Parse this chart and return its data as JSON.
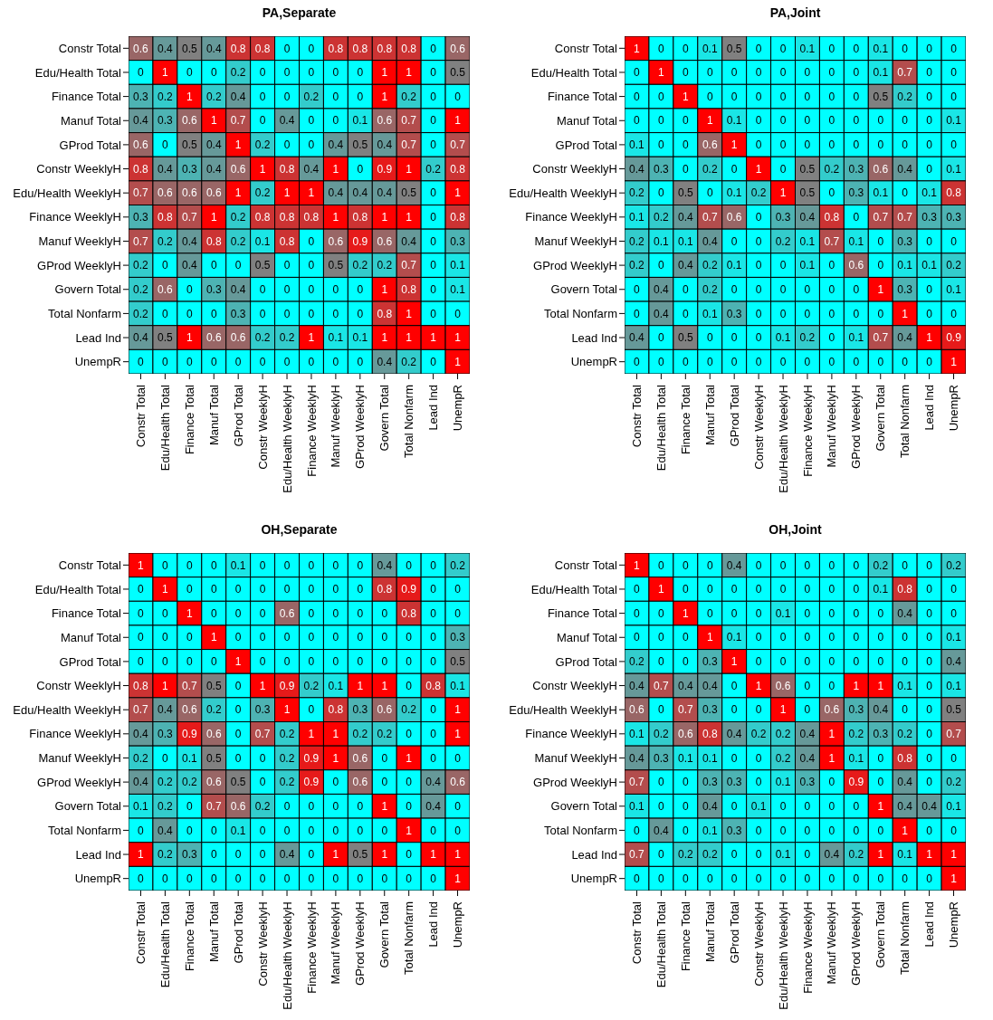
{
  "chart_data": [
    {
      "type": "heatmap",
      "title": "PA,Separate",
      "data_labels": true,
      "colors": [
        "#00ffff",
        "#808080",
        "#ff0000"
      ],
      "categories": [
        "Constr Total",
        "Edu/Health Total",
        "Finance Total",
        "Manuf Total",
        "GProd Total",
        "Constr WeeklyH",
        "Edu/Health WeeklyH",
        "Finance WeeklyH",
        "Manuf WeeklyH",
        "GProd WeeklyH",
        "Govern Total",
        "Total Nonfarm",
        "Lead Ind",
        "UnempR"
      ],
      "y_categories": [
        "Constr Total",
        "Edu/Health Total",
        "Finance Total",
        "Manuf Total",
        "GProd Total",
        "Constr WeeklyH",
        "Edu/Health WeeklyH",
        "Finance WeeklyH",
        "Manuf WeeklyH",
        "GProd WeeklyH",
        "Govern Total",
        "Total Nonfarm",
        "Lead Ind",
        "UnempR"
      ],
      "cells": [
        [
          0.6,
          0.4,
          0.5,
          0.4,
          0.8,
          0.8,
          0,
          0,
          0.8,
          0.8,
          0.8,
          0.8,
          0,
          0.6
        ],
        [
          0,
          1,
          0,
          0,
          0.2,
          0,
          0,
          0,
          0,
          0,
          1,
          1,
          0,
          0.5
        ],
        [
          0.3,
          0.2,
          1,
          0.2,
          0.4,
          0,
          0,
          0.2,
          0,
          0,
          1,
          0.2,
          0,
          0
        ],
        [
          0.4,
          0.3,
          0.6,
          1,
          0.7,
          0,
          0.4,
          0,
          0,
          0.1,
          0.6,
          0.7,
          0,
          1
        ],
        [
          0.6,
          0,
          0.5,
          0.4,
          1,
          0.2,
          0,
          0,
          0.4,
          0.5,
          0.4,
          0.7,
          0,
          0.7
        ],
        [
          0.8,
          0.4,
          0.3,
          0.4,
          0.6,
          1,
          0.8,
          0.4,
          1,
          0,
          0.9,
          1,
          0.2,
          0.8
        ],
        [
          0.7,
          0.6,
          0.6,
          0.6,
          1,
          0.2,
          1,
          1,
          0.4,
          0.4,
          0.4,
          0.5,
          0,
          1
        ],
        [
          0.3,
          0.8,
          0.7,
          1,
          0.2,
          0.8,
          0.8,
          0.8,
          1,
          0.8,
          1,
          1,
          0,
          0.8
        ],
        [
          0.7,
          0.2,
          0.4,
          0.8,
          0.2,
          0.1,
          0.8,
          0,
          0.6,
          0.9,
          0.6,
          0.4,
          0,
          0.3
        ],
        [
          0.2,
          0,
          0.4,
          0,
          0,
          0.5,
          0,
          0,
          0.5,
          0.2,
          0.2,
          0.7,
          0,
          0.1
        ],
        [
          0.2,
          0.6,
          0,
          0.3,
          0.4,
          0,
          0,
          0,
          0,
          0,
          1,
          0.8,
          0,
          0.1
        ],
        [
          0.2,
          0,
          0,
          0,
          0.3,
          0,
          0,
          0,
          0,
          0,
          0.8,
          1,
          0,
          0
        ],
        [
          0.4,
          0.5,
          1,
          0.6,
          0.6,
          0.2,
          0.2,
          1,
          0.1,
          0.1,
          1,
          1,
          1,
          1
        ],
        [
          0,
          0,
          0,
          0,
          0,
          0,
          0,
          0,
          0,
          0,
          0.4,
          0.2,
          0,
          1
        ]
      ]
    },
    {
      "type": "heatmap",
      "title": "PA,Joint",
      "data_labels": true,
      "colors": [
        "#00ffff",
        "#808080",
        "#ff0000"
      ],
      "categories": [
        "Constr Total",
        "Edu/Health Total",
        "Finance Total",
        "Manuf Total",
        "GProd Total",
        "Constr WeeklyH",
        "Edu/Health WeeklyH",
        "Finance WeeklyH",
        "Manuf WeeklyH",
        "GProd WeeklyH",
        "Govern Total",
        "Total Nonfarm",
        "Lead Ind",
        "UnempR"
      ],
      "y_categories": [
        "Constr Total",
        "Edu/Health Total",
        "Finance Total",
        "Manuf Total",
        "GProd Total",
        "Constr WeeklyH",
        "Edu/Health WeeklyH",
        "Finance WeeklyH",
        "Manuf WeeklyH",
        "GProd WeeklyH",
        "Govern Total",
        "Total Nonfarm",
        "Lead Ind",
        "UnempR"
      ],
      "cells": [
        [
          1,
          0,
          0,
          0.1,
          0.5,
          0,
          0,
          0.1,
          0,
          0,
          0.1,
          0,
          0,
          0
        ],
        [
          0,
          1,
          0,
          0,
          0,
          0,
          0,
          0,
          0,
          0,
          0.1,
          0.7,
          0,
          0
        ],
        [
          0,
          0,
          1,
          0,
          0,
          0,
          0,
          0,
          0,
          0,
          0.5,
          0.2,
          0,
          0
        ],
        [
          0,
          0,
          0,
          1,
          0.1,
          0,
          0,
          0,
          0,
          0,
          0,
          0,
          0,
          0.1
        ],
        [
          0.1,
          0,
          0,
          0.6,
          1,
          0,
          0,
          0,
          0,
          0,
          0,
          0,
          0,
          0
        ],
        [
          0.4,
          0.3,
          0,
          0.2,
          0,
          1,
          0,
          0.5,
          0.2,
          0.3,
          0.6,
          0.4,
          0,
          0.1
        ],
        [
          0.2,
          0,
          0.5,
          0,
          0.1,
          0.2,
          1,
          0.5,
          0,
          0.3,
          0.1,
          0,
          0.1,
          0.8
        ],
        [
          0.1,
          0.2,
          0.4,
          0.7,
          0.6,
          0,
          0.3,
          0.4,
          0.8,
          0,
          0.7,
          0.7,
          0.3,
          0.3
        ],
        [
          0.2,
          0.1,
          0.1,
          0.4,
          0,
          0,
          0.2,
          0.1,
          0.7,
          0.1,
          0,
          0.3,
          0,
          0
        ],
        [
          0.2,
          0,
          0.4,
          0.2,
          0.1,
          0,
          0,
          0.1,
          0,
          0.6,
          0,
          0.1,
          0.1,
          0.2
        ],
        [
          0,
          0.4,
          0,
          0.2,
          0,
          0,
          0,
          0,
          0,
          0,
          1,
          0.3,
          0,
          0.1
        ],
        [
          0,
          0.4,
          0,
          0.1,
          0.3,
          0,
          0,
          0,
          0,
          0,
          0,
          1,
          0,
          0
        ],
        [
          0.4,
          0,
          0.5,
          0,
          0,
          0,
          0.1,
          0.2,
          0,
          0.1,
          0.7,
          0.4,
          1,
          0.9
        ],
        [
          0,
          0,
          0,
          0,
          0,
          0,
          0,
          0,
          0,
          0,
          0,
          0,
          0,
          1
        ]
      ]
    },
    {
      "type": "heatmap",
      "title": "OH,Separate",
      "data_labels": true,
      "colors": [
        "#00ffff",
        "#808080",
        "#ff0000"
      ],
      "categories": [
        "Constr Total",
        "Edu/Health Total",
        "Finance Total",
        "Manuf Total",
        "GProd Total",
        "Constr WeeklyH",
        "Edu/Health WeeklyH",
        "Finance WeeklyH",
        "Manuf WeeklyH",
        "GProd WeeklyH",
        "Govern Total",
        "Total Nonfarm",
        "Lead Ind",
        "UnempR"
      ],
      "y_categories": [
        "Constr Total",
        "Edu/Health Total",
        "Finance Total",
        "Manuf Total",
        "GProd Total",
        "Constr WeeklyH",
        "Edu/Health WeeklyH",
        "Finance WeeklyH",
        "Manuf WeeklyH",
        "GProd WeeklyH",
        "Govern Total",
        "Total Nonfarm",
        "Lead Ind",
        "UnempR"
      ],
      "cells": [
        [
          1,
          0,
          0,
          0,
          0.1,
          0,
          0,
          0,
          0,
          0,
          0.4,
          0,
          0,
          0.2
        ],
        [
          0,
          1,
          0,
          0,
          0,
          0,
          0,
          0,
          0,
          0,
          0.8,
          0.9,
          0,
          0
        ],
        [
          0,
          0,
          1,
          0,
          0,
          0,
          0.6,
          0,
          0,
          0,
          0,
          0.8,
          0,
          0
        ],
        [
          0,
          0,
          0,
          1,
          0,
          0,
          0,
          0,
          0,
          0,
          0,
          0,
          0,
          0.3
        ],
        [
          0,
          0,
          0,
          0,
          1,
          0,
          0,
          0,
          0,
          0,
          0,
          0,
          0,
          0.5
        ],
        [
          0.8,
          1,
          0.7,
          0.5,
          0,
          1,
          0.9,
          0.2,
          0.1,
          1,
          1,
          0,
          0.8,
          0.1
        ],
        [
          0.7,
          0.4,
          0.6,
          0.2,
          0,
          0.3,
          1,
          0,
          0.8,
          0.3,
          0.6,
          0.2,
          0,
          1
        ],
        [
          0.4,
          0.3,
          0.9,
          0.6,
          0,
          0.7,
          0.2,
          1,
          1,
          0.2,
          0.2,
          0,
          0,
          1
        ],
        [
          0.2,
          0,
          0.1,
          0.5,
          0,
          0,
          0.2,
          0.9,
          1,
          0.6,
          0,
          1,
          0,
          0
        ],
        [
          0.4,
          0.2,
          0.2,
          0.6,
          0.5,
          0,
          0.2,
          0.9,
          0,
          0.6,
          0,
          0,
          0.4,
          0.6
        ],
        [
          0.1,
          0.2,
          0,
          0.7,
          0.6,
          0.2,
          0,
          0,
          0,
          0,
          1,
          0,
          0.4,
          0
        ],
        [
          0,
          0.4,
          0,
          0,
          0.1,
          0,
          0,
          0,
          0,
          0,
          0,
          1,
          0,
          0
        ],
        [
          1,
          0.2,
          0.3,
          0,
          0,
          0,
          0.4,
          0,
          1,
          0.5,
          1,
          0,
          1,
          1
        ],
        [
          0,
          0,
          0,
          0,
          0,
          0,
          0,
          0,
          0,
          0,
          0,
          0,
          0,
          1
        ]
      ]
    },
    {
      "type": "heatmap",
      "title": "OH,Joint",
      "data_labels": true,
      "colors": [
        "#00ffff",
        "#808080",
        "#ff0000"
      ],
      "categories": [
        "Constr Total",
        "Edu/Health Total",
        "Finance Total",
        "Manuf Total",
        "GProd Total",
        "Constr WeeklyH",
        "Edu/Health WeeklyH",
        "Finance WeeklyH",
        "Manuf WeeklyH",
        "GProd WeeklyH",
        "Govern Total",
        "Total Nonfarm",
        "Lead Ind",
        "UnempR"
      ],
      "y_categories": [
        "Constr Total",
        "Edu/Health Total",
        "Finance Total",
        "Manuf Total",
        "GProd Total",
        "Constr WeeklyH",
        "Edu/Health WeeklyH",
        "Finance WeeklyH",
        "Manuf WeeklyH",
        "GProd WeeklyH",
        "Govern Total",
        "Total Nonfarm",
        "Lead Ind",
        "UnempR"
      ],
      "cells": [
        [
          1,
          0,
          0,
          0,
          0.4,
          0,
          0,
          0,
          0,
          0,
          0.2,
          0,
          0,
          0.2
        ],
        [
          0,
          1,
          0,
          0,
          0,
          0,
          0,
          0,
          0,
          0,
          0.1,
          0.8,
          0,
          0
        ],
        [
          0,
          0,
          1,
          0,
          0,
          0,
          0.1,
          0,
          0,
          0,
          0,
          0.4,
          0,
          0
        ],
        [
          0,
          0,
          0,
          1,
          0.1,
          0,
          0,
          0,
          0,
          0,
          0,
          0,
          0,
          0.1
        ],
        [
          0.2,
          0,
          0,
          0.3,
          1,
          0,
          0,
          0,
          0,
          0,
          0,
          0,
          0,
          0.4
        ],
        [
          0.4,
          0.7,
          0.4,
          0.4,
          0,
          1,
          0.6,
          0,
          0,
          1,
          1,
          0.1,
          0,
          0.1
        ],
        [
          0.6,
          0,
          0.7,
          0.3,
          0,
          0,
          1,
          0,
          0.6,
          0.3,
          0.4,
          0,
          0,
          0.5
        ],
        [
          0.1,
          0.2,
          0.6,
          0.8,
          0.4,
          0.2,
          0.2,
          0.4,
          1,
          0.2,
          0.3,
          0.2,
          0,
          0.7
        ],
        [
          0.4,
          0.3,
          0.1,
          0.1,
          0,
          0,
          0.2,
          0.4,
          1,
          0.1,
          0,
          0.8,
          0,
          0
        ],
        [
          0.7,
          0,
          0,
          0.3,
          0.3,
          0,
          0.1,
          0.3,
          0,
          0.9,
          0,
          0.4,
          0,
          0.2
        ],
        [
          0.1,
          0,
          0,
          0.4,
          0,
          0.1,
          0,
          0,
          0,
          0,
          1,
          0.4,
          0.4,
          0.1
        ],
        [
          0,
          0.4,
          0,
          0.1,
          0.3,
          0,
          0,
          0,
          0,
          0,
          0,
          1,
          0,
          0
        ],
        [
          0.7,
          0,
          0.2,
          0.2,
          0,
          0,
          0.1,
          0,
          0.4,
          0.2,
          1,
          0.1,
          1,
          1
        ],
        [
          0,
          0,
          0,
          0,
          0,
          0,
          0,
          0,
          0,
          0,
          0,
          0,
          0,
          1
        ]
      ]
    }
  ]
}
